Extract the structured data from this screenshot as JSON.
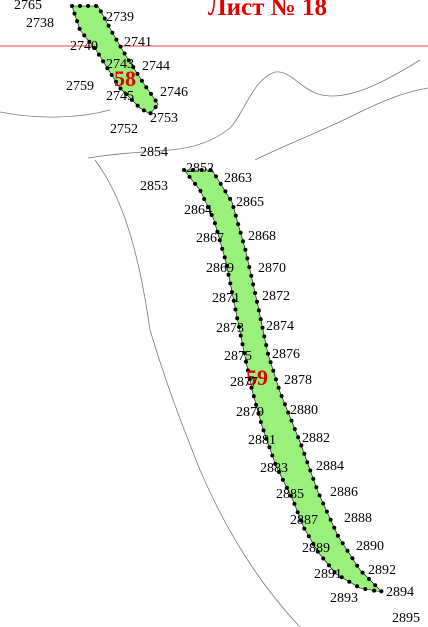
{
  "sheet_title": "Лист № 18",
  "colors": {
    "parcel_fill": "#99f07a",
    "sheet_line": "#e00000",
    "parcel_number": "#e00000",
    "contour": "#7a7a7a"
  },
  "parcels": [
    {
      "number": "58"
    },
    {
      "number": "59"
    }
  ],
  "labels": [
    "2765",
    "2738",
    "2739",
    "2740",
    "2741",
    "2743",
    "2744",
    "2759",
    "2745",
    "2746",
    "2752",
    "2753",
    "2854",
    "2852",
    "2863",
    "2853",
    "2864",
    "2865",
    "2867",
    "2868",
    "2869",
    "2870",
    "2871",
    "2872",
    "2873",
    "2874",
    "2875",
    "2876",
    "2877",
    "2878",
    "2879",
    "2880",
    "2881",
    "2882",
    "2883",
    "2884",
    "2885",
    "2886",
    "2887",
    "2888",
    "2889",
    "2890",
    "2891",
    "2892",
    "2893",
    "2894",
    "2895"
  ]
}
